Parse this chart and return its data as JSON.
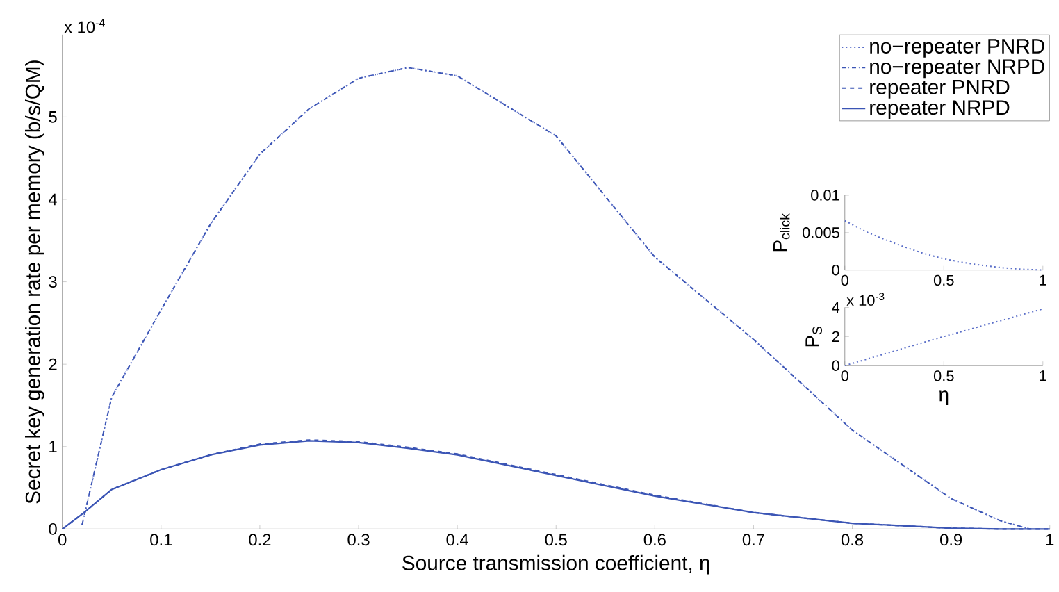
{
  "chart_data": [
    {
      "type": "line",
      "xlabel": "Source transmission coefficient, η",
      "ylabel": "Secret key generation rate per memory (b/s/QM)",
      "annotations": [
        "x 10$^{-4}$"
      ],
      "x": [
        0,
        0.02,
        0.05,
        0.1,
        0.15,
        0.2,
        0.25,
        0.3,
        0.35,
        0.4,
        0.5,
        0.6,
        0.7,
        0.8,
        0.9,
        0.95,
        0.98,
        1
      ],
      "series": [
        {
          "name": "no−repeater PNRD",
          "color": "#5a6ec8",
          "line_style": "dotted",
          "values": [
            null,
            0.05,
            1.6,
            2.66,
            3.7,
            4.55,
            5.1,
            5.47,
            5.6,
            5.5,
            4.77,
            3.3,
            2.3,
            1.2,
            0.37,
            0.1,
            0,
            null
          ]
        },
        {
          "name": "no−repeater NRPD",
          "color": "#3b55b5",
          "line_style": "dashdot",
          "values": [
            null,
            0.05,
            1.6,
            2.66,
            3.7,
            4.55,
            5.1,
            5.47,
            5.6,
            5.5,
            4.77,
            3.3,
            2.3,
            1.2,
            0.37,
            0.1,
            0,
            null
          ]
        },
        {
          "name": "repeater PNRD",
          "color": "#3b55b5",
          "line_style": "dashed",
          "values": [
            0,
            0.18,
            0.48,
            0.72,
            0.9,
            1.03,
            1.08,
            1.06,
            0.99,
            0.91,
            0.66,
            0.41,
            0.2,
            0.07,
            0.01,
            0,
            0,
            0
          ]
        },
        {
          "name": "repeater NRPD",
          "color": "#3b55b5",
          "line_style": "solid",
          "values": [
            0,
            0.18,
            0.48,
            0.72,
            0.9,
            1.02,
            1.07,
            1.05,
            0.98,
            0.9,
            0.65,
            0.4,
            0.2,
            0.07,
            0.01,
            0,
            0,
            0
          ]
        }
      ],
      "xlim": [
        0,
        1
      ],
      "ylim": [
        0,
        6
      ],
      "xticks": [
        0,
        0.1,
        0.2,
        0.3,
        0.4,
        0.5,
        0.6,
        0.7,
        0.8,
        0.9,
        1
      ],
      "yticks": [
        0,
        1,
        2,
        3,
        4,
        5
      ],
      "legend": "top right",
      "marker": "none",
      "grid": false
    },
    {
      "type": "line",
      "ylabel": "P$_{click}$",
      "x": [
        0,
        0.1,
        0.2,
        0.3,
        0.4,
        0.5,
        0.6,
        0.7,
        0.8,
        0.9,
        1
      ],
      "series": [
        {
          "color": "#5a6ec8",
          "line_style": "dotted",
          "values": [
            0.0066,
            0.0052,
            0.0041,
            0.0031,
            0.0022,
            0.0015,
            0.001,
            0.0006,
            0.0003,
            0.0001,
            0
          ]
        }
      ],
      "xlim": [
        0,
        1
      ],
      "ylim": [
        0,
        0.01
      ],
      "xticks": [
        0,
        0.5,
        1
      ],
      "yticks": [
        0,
        0.005,
        0.01
      ],
      "marker": "none",
      "grid": false
    },
    {
      "type": "line",
      "xlabel": "η",
      "ylabel": "P$_{S}$",
      "annotations": [
        "x 10$^{-3}$"
      ],
      "x": [
        0,
        0.5,
        1
      ],
      "series": [
        {
          "color": "#5a6ec8",
          "line_style": "dotted",
          "values": [
            0,
            2,
            3.9
          ]
        }
      ],
      "xlim": [
        0,
        1
      ],
      "ylim": [
        0,
        4
      ],
      "xticks": [
        0,
        0.5,
        1
      ],
      "yticks": [
        0,
        2,
        4
      ],
      "marker": "none",
      "grid": false
    }
  ]
}
